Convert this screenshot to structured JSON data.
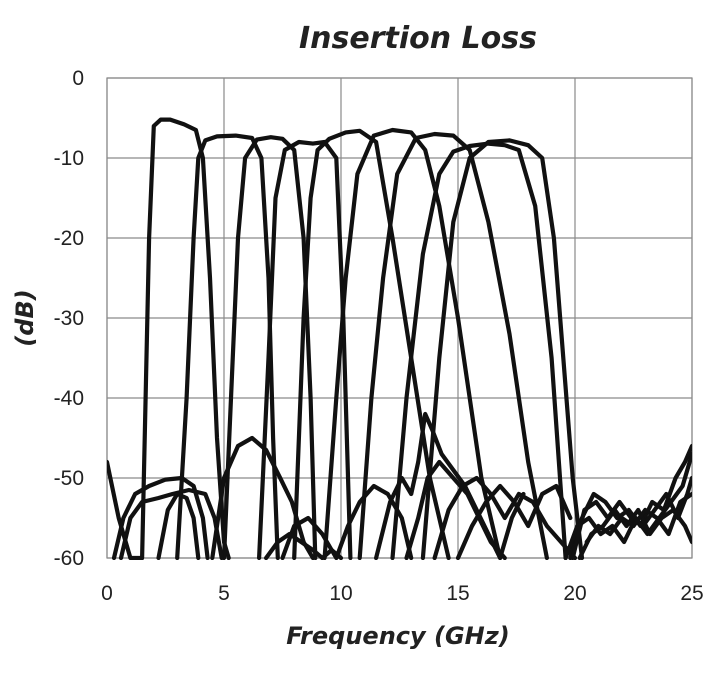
{
  "chart_data": {
    "type": "line",
    "title": "Insertion Loss",
    "xlabel": "Frequency (GHz)",
    "ylabel": "(dB)",
    "xlim": [
      0,
      25
    ],
    "ylim": [
      -60,
      0
    ],
    "xticks": [
      0,
      5,
      10,
      15,
      20,
      25
    ],
    "yticks": [
      0,
      -10,
      -20,
      -30,
      -40,
      -50,
      -60
    ],
    "grid": true,
    "legend": "none",
    "series": [
      {
        "x": [
          0.0,
          0.5,
          1.0,
          1.5,
          1.8,
          2.0,
          2.3,
          2.7,
          3.3,
          3.8,
          4.1,
          4.4,
          4.7,
          5.0,
          5.2
        ],
        "y": [
          -48,
          -55,
          -60,
          -60,
          -20,
          -6,
          -5.2,
          -5.2,
          -5.8,
          -6.5,
          -10,
          -25,
          -45,
          -58,
          -60
        ]
      },
      {
        "x": [
          3.0,
          3.4,
          3.7,
          3.9,
          4.2,
          4.7,
          5.5,
          6.2,
          6.6,
          6.9,
          7.1,
          7.3
        ],
        "y": [
          -60,
          -40,
          -20,
          -10,
          -7.8,
          -7.3,
          -7.2,
          -7.5,
          -10,
          -25,
          -45,
          -60
        ]
      },
      {
        "x": [
          5.0,
          5.3,
          5.6,
          5.9,
          6.4,
          7.0,
          7.5,
          8.0,
          8.4,
          8.7,
          8.9
        ],
        "y": [
          -60,
          -40,
          -20,
          -10,
          -7.7,
          -7.4,
          -7.6,
          -9,
          -20,
          -40,
          -60
        ]
      },
      {
        "x": [
          6.5,
          6.9,
          7.2,
          7.6,
          8.2,
          8.8,
          9.3,
          9.8,
          10.1,
          10.4
        ],
        "y": [
          -60,
          -35,
          -15,
          -9,
          -8,
          -8.2,
          -8,
          -10,
          -30,
          -60
        ]
      },
      {
        "x": [
          8.0,
          8.4,
          8.7,
          9.0,
          9.5,
          10.2,
          10.8,
          11.5,
          12.2,
          13.0,
          13.8,
          14.6
        ],
        "y": [
          -60,
          -30,
          -15,
          -9,
          -7.6,
          -6.8,
          -6.6,
          -8,
          -20,
          -35,
          -50,
          -60
        ]
      },
      {
        "x": [
          9.3,
          9.8,
          10.2,
          10.7,
          11.4,
          12.2,
          13.0,
          13.6,
          14.2,
          15.0,
          16.0,
          16.8
        ],
        "y": [
          -60,
          -40,
          -25,
          -12,
          -7.2,
          -6.5,
          -6.8,
          -9,
          -16,
          -30,
          -50,
          -60
        ]
      },
      {
        "x": [
          10.8,
          11.3,
          11.8,
          12.4,
          13.2,
          14.0,
          14.8,
          15.5,
          16.3,
          17.2,
          18.0,
          18.8
        ],
        "y": [
          -60,
          -40,
          -25,
          -12,
          -7.5,
          -7.0,
          -7.2,
          -9,
          -18,
          -32,
          -48,
          -60
        ]
      },
      {
        "x": [
          12.2,
          12.8,
          13.5,
          14.2,
          14.8,
          15.5,
          16.3,
          17.0,
          17.6,
          18.3,
          19.0,
          19.6
        ],
        "y": [
          -60,
          -40,
          -22,
          -12,
          -9.2,
          -8.5,
          -8.2,
          -8.4,
          -9,
          -16,
          -35,
          -60
        ]
      },
      {
        "x": [
          13.5,
          14.2,
          14.8,
          15.5,
          16.3,
          17.2,
          18.0,
          18.6,
          19.1,
          19.5,
          19.9,
          20.3
        ],
        "y": [
          -60,
          -35,
          -18,
          -10,
          -8.0,
          -7.8,
          -8.4,
          -10,
          -20,
          -35,
          -50,
          -60
        ]
      },
      {
        "x": [
          0.3,
          0.7,
          1.2,
          1.8,
          2.5,
          3.2,
          3.7,
          4.1,
          4.3
        ],
        "y": [
          -60,
          -55,
          -52,
          -51,
          -50.2,
          -50,
          -51,
          -55,
          -60
        ]
      },
      {
        "x": [
          0.6,
          1.0,
          1.5,
          2.2,
          2.8,
          3.5,
          4.2,
          4.6,
          4.9
        ],
        "y": [
          -60,
          -55,
          -53,
          -52.5,
          -52,
          -51.5,
          -52,
          -55,
          -60
        ]
      },
      {
        "x": [
          2.2,
          2.6,
          3.0,
          3.4,
          3.7,
          3.9
        ],
        "y": [
          -60,
          -54,
          -52,
          -52.5,
          -55,
          -60
        ]
      },
      {
        "x": [
          4.5,
          5.0,
          5.6,
          6.2,
          6.8,
          7.4,
          7.9,
          8.4,
          8.8
        ],
        "y": [
          -60,
          -50,
          -46,
          -45,
          -46.5,
          -50,
          -53,
          -58,
          -60
        ]
      },
      {
        "x": [
          6.8,
          7.3,
          7.8,
          8.3,
          8.8,
          9.2,
          9.6,
          10.0
        ],
        "y": [
          -60,
          -58,
          -57,
          -58,
          -59,
          -60,
          -59,
          -60
        ]
      },
      {
        "x": [
          7.5,
          8.0,
          8.6,
          9.2,
          9.8,
          10.3,
          10.8,
          11.4,
          12.0,
          12.6,
          13.0
        ],
        "y": [
          -60,
          -56,
          -55,
          -57,
          -60,
          -56,
          -53,
          -51,
          -52,
          -55,
          -60
        ]
      },
      {
        "x": [
          11.5,
          12.1,
          12.6,
          13.0,
          13.3,
          13.6,
          13.9,
          14.3,
          14.8,
          15.3,
          15.8,
          16.3,
          16.8,
          17.3,
          17.8
        ],
        "y": [
          -60,
          -53,
          -50,
          -52,
          -48,
          -42,
          -44,
          -47,
          -49,
          -51,
          -54,
          -57,
          -60,
          -55,
          -52
        ]
      },
      {
        "x": [
          12.8,
          13.3,
          13.7,
          14.2,
          14.8,
          15.4,
          15.9,
          16.4,
          17.0
        ],
        "y": [
          -60,
          -55,
          -50,
          -48,
          -50,
          -52,
          -55,
          -58,
          -60
        ]
      },
      {
        "x": [
          14.0,
          14.6,
          15.2,
          15.8,
          16.4,
          17.0,
          17.6,
          18.2,
          18.8,
          19.4,
          20.0
        ],
        "y": [
          -60,
          -54,
          -51,
          -50,
          -52,
          -55,
          -52,
          -53,
          -56,
          -58,
          -60
        ]
      },
      {
        "x": [
          15.0,
          15.6,
          16.2,
          16.8,
          17.4,
          18.0,
          18.6,
          19.2,
          19.8
        ],
        "y": [
          -60,
          -56,
          -53,
          -51,
          -53,
          -56,
          -52,
          -51,
          -55
        ]
      },
      {
        "x": [
          19.8,
          20.3,
          20.8,
          21.3,
          21.8,
          22.3,
          22.8,
          23.3,
          23.8,
          24.3,
          24.7,
          25.0
        ],
        "y": [
          -60,
          -55,
          -52,
          -53,
          -55,
          -54,
          -56,
          -53,
          -54,
          -50,
          -48,
          -46
        ]
      },
      {
        "x": [
          19.6,
          20.1,
          20.6,
          21.1,
          21.6,
          22.1,
          22.6,
          23.1,
          23.6,
          24.1,
          24.6,
          25.0
        ],
        "y": [
          -60,
          -56,
          -55,
          -57,
          -56,
          -58,
          -55,
          -57,
          -55,
          -53,
          -51,
          -47
        ]
      },
      {
        "x": [
          19.9,
          20.4,
          20.9,
          21.4,
          21.9,
          22.4,
          22.9,
          23.4,
          23.9,
          24.4,
          24.8,
          25.0
        ],
        "y": [
          -60,
          -54,
          -53,
          -55,
          -53,
          -55,
          -56,
          -54,
          -52,
          -55,
          -52,
          -50
        ]
      },
      {
        "x": [
          20.2,
          20.7,
          21.2,
          21.7,
          22.2,
          22.7,
          23.2,
          23.7,
          24.2,
          24.7,
          25.0
        ],
        "y": [
          -60,
          -57,
          -56,
          -54,
          -56,
          -54,
          -57,
          -55,
          -54,
          -56,
          -58
        ]
      },
      {
        "x": [
          20.5,
          21.0,
          21.5,
          22.0,
          22.5,
          23.0,
          23.5,
          24.0,
          24.5,
          25.0
        ],
        "y": [
          -58,
          -56,
          -57,
          -55,
          -56,
          -54,
          -55,
          -57,
          -53,
          -52
        ]
      }
    ]
  }
}
